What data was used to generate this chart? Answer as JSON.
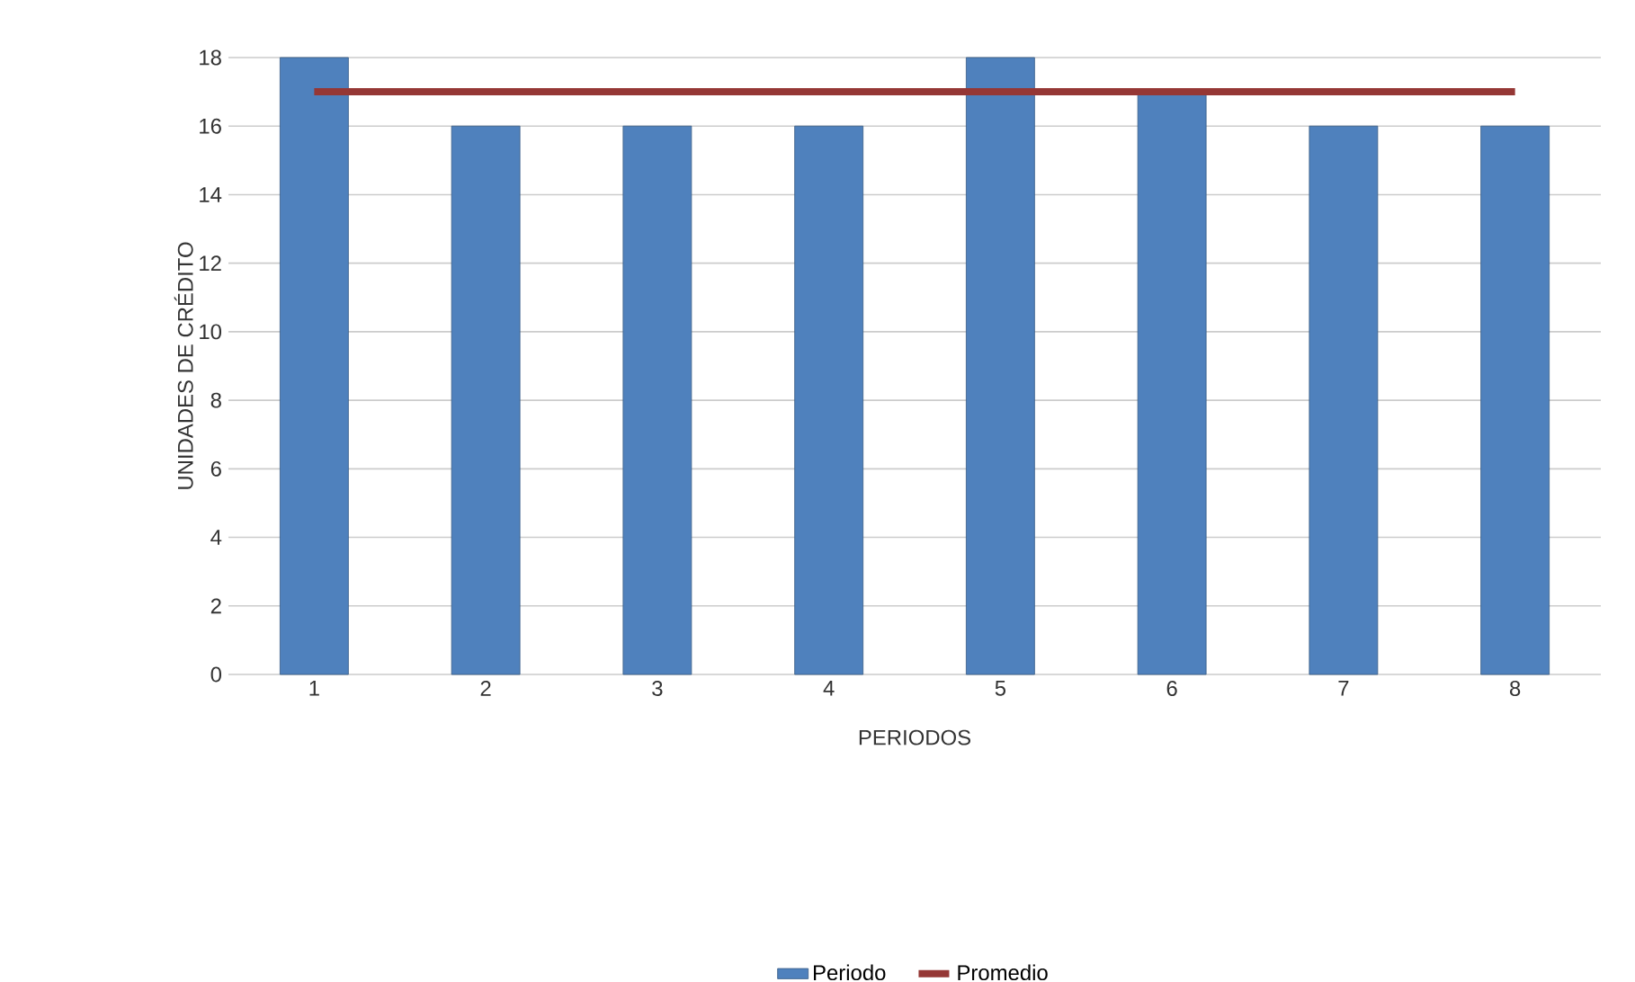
{
  "chart_data": {
    "type": "bar",
    "xlabel": "PERIODOS",
    "ylabel": "UNIDADES DE CRÉDITO",
    "categories": [
      "1",
      "2",
      "3",
      "4",
      "5",
      "6",
      "7",
      "8"
    ],
    "series": [
      {
        "name": "Periodo",
        "color": "#4f81bd",
        "values": [
          18,
          16,
          16,
          16,
          18,
          17,
          16,
          16
        ]
      },
      {
        "name": "Promedio",
        "type": "line",
        "color": "#953735",
        "values": [
          17,
          17,
          17,
          17,
          17,
          17,
          17,
          17
        ]
      }
    ],
    "ylim": [
      0,
      18
    ],
    "yticks": [
      0,
      2,
      4,
      6,
      8,
      10,
      12,
      14,
      16,
      18
    ],
    "grid": "y",
    "legend": "bottom",
    "marker": "none",
    "line_style": "solid"
  }
}
